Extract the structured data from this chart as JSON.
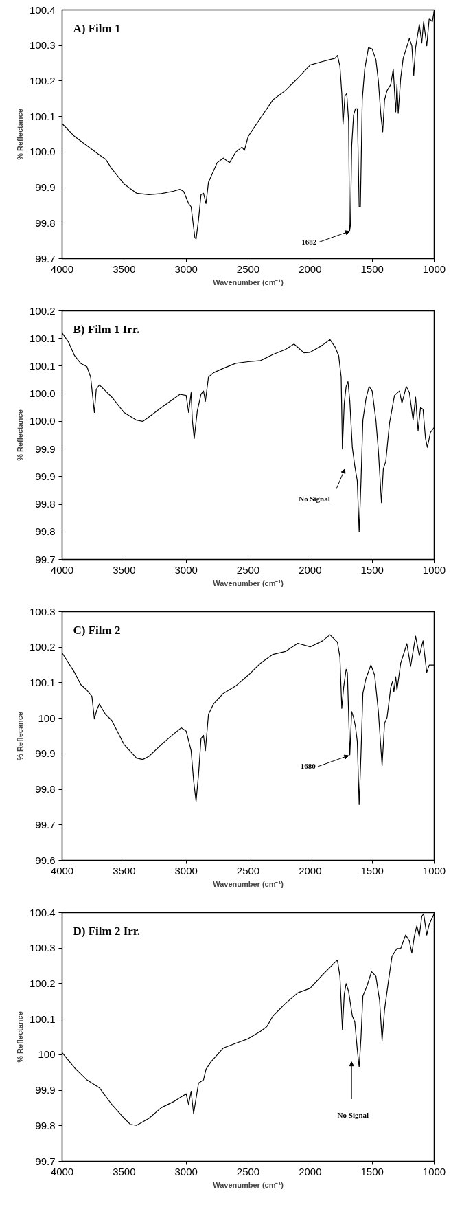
{
  "chart_data": [
    {
      "type": "line",
      "title": "A) Film 1",
      "xlabel": "Wavenumber (cm⁻¹)",
      "ylabel": "% Reflectance",
      "xlim": [
        4000,
        1000
      ],
      "xticks": [
        4000,
        3500,
        3000,
        2500,
        2000,
        1500,
        1000
      ],
      "ylim": [
        99.7,
        100.4
      ],
      "yticks": [
        99.7,
        99.8,
        99.9,
        {
          "value": 100,
          "label": "100.0"
        },
        100.1,
        100.2,
        100.3,
        100.4
      ],
      "grid": false,
      "marker": "none",
      "line_style": "solid",
      "annotations": [
        {
          "text": "1682",
          "x": 1682,
          "y": 99.777
        }
      ],
      "series": [
        {
          "color": "#000000",
          "x": [
            4000,
            3900,
            3800,
            3700,
            3650,
            3600,
            3500,
            3400,
            3300,
            3200,
            3100,
            3050,
            3020,
            2980,
            2960,
            2930,
            2920,
            2900,
            2880,
            2860,
            2840,
            2820,
            2750,
            2700,
            2650,
            2600,
            2550,
            2530,
            2500,
            2400,
            2300,
            2200,
            2100,
            2000,
            1900,
            1800,
            1780,
            1760,
            1745,
            1735,
            1720,
            1705,
            1690,
            1682,
            1675,
            1665,
            1650,
            1635,
            1620,
            1605,
            1595,
            1580,
            1560,
            1530,
            1500,
            1470,
            1450,
            1430,
            1415,
            1400,
            1380,
            1350,
            1330,
            1310,
            1300,
            1290,
            1270,
            1250,
            1200,
            1180,
            1165,
            1150,
            1120,
            1100,
            1085,
            1060,
            1040,
            1015,
            1000
          ],
          "values": [
            100.08,
            100.044,
            100.018,
            99.992,
            99.98,
            99.953,
            99.91,
            99.884,
            99.88,
            99.883,
            99.89,
            99.895,
            99.889,
            99.855,
            99.846,
            99.76,
            99.755,
            99.81,
            99.88,
            99.884,
            99.855,
            99.915,
            99.97,
            99.983,
            99.97,
            100.0,
            100.014,
            100.005,
            100.044,
            100.096,
            100.147,
            100.173,
            100.208,
            100.245,
            100.255,
            100.264,
            100.272,
            100.242,
            100.165,
            100.078,
            100.157,
            100.165,
            100.087,
            99.777,
            99.794,
            100.018,
            100.104,
            100.122,
            100.122,
            99.846,
            99.846,
            100.147,
            100.234,
            100.294,
            100.29,
            100.26,
            100.2,
            100.104,
            100.057,
            100.147,
            100.173,
            100.19,
            100.234,
            100.113,
            100.19,
            100.109,
            100.208,
            100.264,
            100.32,
            100.299,
            100.216,
            100.294,
            100.359,
            100.307,
            100.367,
            100.299,
            100.376,
            100.367,
            100.397
          ]
        }
      ]
    },
    {
      "type": "line",
      "title": "B) Film 1 Irr.",
      "xlabel": "Wavenumber (cm⁻¹)",
      "ylabel": "% Reflectance",
      "xlim": [
        4000,
        1000
      ],
      "xticks": [
        4000,
        3500,
        3000,
        2500,
        2000,
        1500,
        1000
      ],
      "ylim": [
        99.7,
        100.15
      ],
      "yticks": [
        99.7,
        {
          "value": 99.75,
          "label": "99.8"
        },
        99.8,
        {
          "value": 99.85,
          "label": "99.9"
        },
        99.9,
        {
          "value": 99.95,
          "label": "100.0"
        },
        {
          "value": 100,
          "label": "100.0"
        },
        {
          "value": 100.05,
          "label": "100.1"
        },
        100.1,
        {
          "value": 100.15,
          "label": "100.2"
        }
      ],
      "grid": false,
      "marker": "none",
      "line_style": "solid",
      "annotations": [
        "No Signal"
      ],
      "series": [
        {
          "color": "#000000",
          "x": [
            4000,
            3950,
            3900,
            3850,
            3800,
            3770,
            3740,
            3725,
            3700,
            3650,
            3600,
            3500,
            3400,
            3350,
            3300,
            3200,
            3100,
            3050,
            3000,
            2980,
            2960,
            2950,
            2935,
            2910,
            2880,
            2860,
            2845,
            2820,
            2780,
            2700,
            2600,
            2500,
            2400,
            2300,
            2200,
            2130,
            2050,
            2000,
            1900,
            1840,
            1800,
            1770,
            1750,
            1740,
            1725,
            1710,
            1695,
            1680,
            1660,
            1640,
            1620,
            1605,
            1590,
            1575,
            1550,
            1525,
            1500,
            1470,
            1450,
            1425,
            1410,
            1390,
            1360,
            1320,
            1280,
            1260,
            1225,
            1200,
            1170,
            1150,
            1130,
            1110,
            1090,
            1070,
            1055,
            1030,
            1000
          ],
          "values": [
            100.11,
            100.094,
            100.069,
            100.055,
            100.049,
            100.03,
            99.966,
            100.008,
            100.016,
            100.005,
            99.994,
            99.966,
            99.952,
            99.95,
            99.958,
            99.975,
            99.991,
            99.999,
            99.997,
            99.966,
            100.002,
            99.952,
            99.919,
            99.969,
            99.999,
            100.005,
            99.986,
            100.03,
            100.038,
            100.046,
            100.055,
            100.058,
            100.06,
            100.071,
            100.08,
            100.09,
            100.074,
            100.075,
            100.088,
            100.098,
            100.085,
            100.069,
            100.03,
            99.9,
            99.983,
            100.013,
            100.022,
            99.986,
            99.903,
            99.869,
            99.842,
            99.75,
            99.842,
            99.952,
            99.991,
            100.013,
            100.005,
            99.952,
            99.897,
            99.803,
            99.864,
            99.878,
            99.947,
            99.997,
            100.005,
            99.983,
            100.013,
            100.002,
            99.952,
            99.994,
            99.933,
            99.975,
            99.972,
            99.919,
            99.903,
            99.93,
            99.939
          ]
        }
      ]
    },
    {
      "type": "line",
      "title": "C) Film 2",
      "xlabel": "Wavenumber (cm⁻¹)",
      "ylabel": "% Reflecance",
      "xlim": [
        4000,
        1000
      ],
      "xticks": [
        4000,
        3500,
        3000,
        2500,
        2000,
        1500,
        1000
      ],
      "ylim": [
        99.6,
        100.3
      ],
      "yticks": [
        99.6,
        99.7,
        99.8,
        99.9,
        100,
        100.1,
        100.2,
        100.3
      ],
      "grid": false,
      "marker": "none",
      "line_style": "solid",
      "annotations": [
        {
          "text": "1680",
          "x": 1690,
          "y": 99.895
        }
      ],
      "series": [
        {
          "color": "#000000",
          "x": [
            4000,
            3900,
            3850,
            3800,
            3760,
            3740,
            3720,
            3700,
            3650,
            3600,
            3500,
            3400,
            3350,
            3300,
            3200,
            3100,
            3040,
            3000,
            2960,
            2940,
            2920,
            2900,
            2880,
            2860,
            2845,
            2820,
            2780,
            2700,
            2600,
            2500,
            2400,
            2300,
            2200,
            2100,
            2000,
            1900,
            1840,
            1780,
            1760,
            1745,
            1730,
            1710,
            1700,
            1680,
            1665,
            1650,
            1635,
            1620,
            1605,
            1590,
            1575,
            1550,
            1510,
            1480,
            1450,
            1420,
            1400,
            1380,
            1350,
            1335,
            1325,
            1310,
            1300,
            1270,
            1220,
            1190,
            1150,
            1120,
            1090,
            1060,
            1040,
            1000
          ],
          "values": [
            100.184,
            100.129,
            100.095,
            100.079,
            100.062,
            99.998,
            100.024,
            100.04,
            100.011,
            99.994,
            99.926,
            99.888,
            99.884,
            99.893,
            99.926,
            99.956,
            99.973,
            99.964,
            99.909,
            99.825,
            99.766,
            99.842,
            99.943,
            99.952,
            99.909,
            100.011,
            100.04,
            100.07,
            100.091,
            100.121,
            100.155,
            100.18,
            100.188,
            100.211,
            100.201,
            100.218,
            100.235,
            100.214,
            100.172,
            100.028,
            100.087,
            100.138,
            100.129,
            99.897,
            100.019,
            100.002,
            99.977,
            99.935,
            99.757,
            99.901,
            100.07,
            100.112,
            100.15,
            100.121,
            100.019,
            99.867,
            99.986,
            100.002,
            100.087,
            100.104,
            100.074,
            100.117,
            100.079,
            100.155,
            100.21,
            100.146,
            100.231,
            100.176,
            100.218,
            100.129,
            100.15,
            100.15
          ]
        }
      ]
    },
    {
      "type": "line",
      "title": "D) Film 2 Irr.",
      "xlabel": "Wavenumber (cm⁻¹)",
      "ylabel": "% Reflectance",
      "xlim": [
        4000,
        1000
      ],
      "xticks": [
        4000,
        3500,
        3000,
        2500,
        2000,
        1500,
        1000
      ],
      "ylim": [
        99.7,
        100.4
      ],
      "yticks": [
        99.7,
        99.8,
        99.9,
        100,
        100.1,
        100.2,
        100.3,
        100.4
      ],
      "grid": false,
      "marker": "none",
      "line_style": "solid",
      "annotations": [
        "No Signal"
      ],
      "series": [
        {
          "color": "#000000",
          "x": [
            4000,
            3900,
            3800,
            3700,
            3600,
            3500,
            3450,
            3400,
            3300,
            3200,
            3100,
            3000,
            2980,
            2960,
            2940,
            2900,
            2860,
            2840,
            2800,
            2700,
            2600,
            2500,
            2400,
            2350,
            2300,
            2200,
            2100,
            2000,
            1900,
            1800,
            1780,
            1760,
            1740,
            1725,
            1710,
            1690,
            1660,
            1640,
            1620,
            1605,
            1590,
            1575,
            1540,
            1505,
            1470,
            1440,
            1420,
            1400,
            1370,
            1340,
            1300,
            1270,
            1230,
            1200,
            1180,
            1160,
            1140,
            1120,
            1100,
            1085,
            1060,
            1040,
            1000
          ],
          "values": [
            100.006,
            99.963,
            99.929,
            99.907,
            99.86,
            99.821,
            99.804,
            99.801,
            99.821,
            99.851,
            99.868,
            99.89,
            99.86,
            99.897,
            99.834,
            99.92,
            99.929,
            99.959,
            99.98,
            100.019,
            100.032,
            100.045,
            100.066,
            100.079,
            100.109,
            100.144,
            100.174,
            100.187,
            100.225,
            100.26,
            100.266,
            100.221,
            100.071,
            100.17,
            100.2,
            100.178,
            100.109,
            100.092,
            100.015,
            99.965,
            100.049,
            100.165,
            100.195,
            100.234,
            100.221,
            100.152,
            100.04,
            100.127,
            100.204,
            100.277,
            100.299,
            100.299,
            100.337,
            100.32,
            100.286,
            100.333,
            100.363,
            100.333,
            100.389,
            100.397,
            100.337,
            100.367,
            100.397
          ]
        }
      ]
    }
  ]
}
